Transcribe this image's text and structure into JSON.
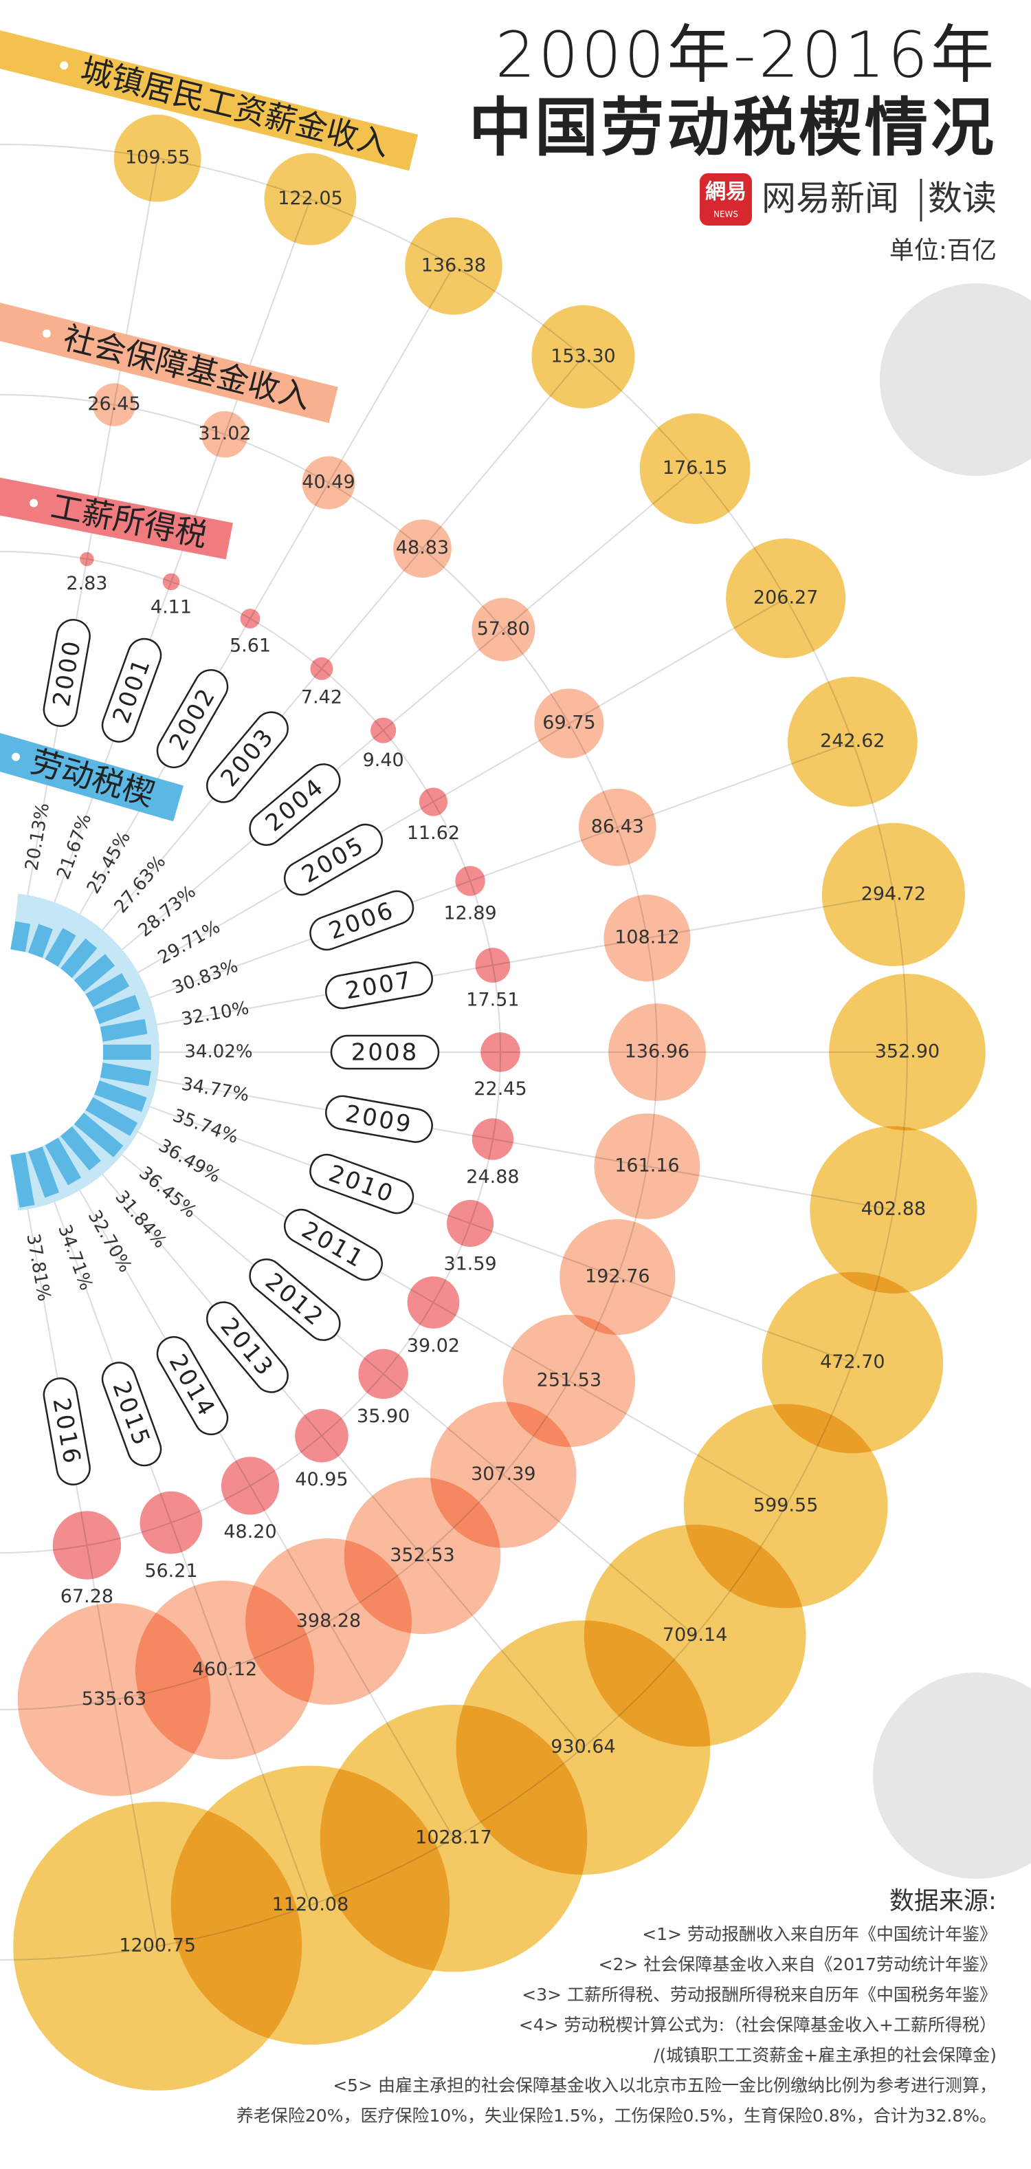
{
  "chart_data": {
    "type": "radial-bubble",
    "title": [
      "2000年-2016年",
      "中国劳动税楔情况"
    ],
    "unit": "单位:百亿",
    "categories": [
      "2000",
      "2001",
      "2002",
      "2003",
      "2004",
      "2005",
      "2006",
      "2007",
      "2008",
      "2009",
      "2010",
      "2011",
      "2012",
      "2013",
      "2014",
      "2015",
      "2016"
    ],
    "series": [
      {
        "name": "城镇居民工资薪金收入",
        "color": "#f2c14e",
        "values": [
          109.55,
          122.05,
          136.38,
          153.3,
          176.15,
          206.27,
          242.62,
          294.72,
          352.9,
          402.88,
          472.7,
          599.55,
          709.14,
          930.64,
          1028.17,
          1120.08,
          1200.75
        ],
        "value_labels": [
          "109.55",
          "122.05",
          "136.38",
          "153.30",
          "176.15",
          "206.27",
          "242.62",
          "294.72",
          "352.90",
          "402.88",
          "472.70",
          "599.55",
          "709.14",
          "930.64",
          "1028.17",
          "1120.08",
          "1200.75"
        ]
      },
      {
        "name": "社会保障基金收入",
        "color": "#f9b08f",
        "values": [
          26.45,
          31.02,
          40.49,
          48.83,
          57.8,
          69.75,
          86.43,
          108.12,
          136.96,
          161.16,
          192.76,
          251.53,
          307.39,
          352.53,
          398.28,
          460.12,
          535.63
        ],
        "value_labels": [
          "26.45",
          "31.02",
          "40.49",
          "48.83",
          "57.80",
          "69.75",
          "86.43",
          "108.12",
          "136.96",
          "161.16",
          "192.76",
          "251.53",
          "307.39",
          "352.53",
          "398.28",
          "460.12",
          "535.63"
        ]
      },
      {
        "name": "工薪所得税",
        "color": "#f07c80",
        "values": [
          2.83,
          4.11,
          5.61,
          7.42,
          9.4,
          11.62,
          12.89,
          17.51,
          22.45,
          24.88,
          31.59,
          39.02,
          35.9,
          40.95,
          48.2,
          56.21,
          67.28
        ],
        "value_labels": [
          "2.83",
          "4.11",
          "5.61",
          "7.42",
          "9.40",
          "11.62",
          "12.89",
          "17.51",
          "22.45",
          "24.88",
          "31.59",
          "39.02",
          "35.90",
          "40.95",
          "48.20",
          "56.21",
          "67.28"
        ]
      },
      {
        "name": "劳动税楔",
        "color": "#5bb8e4",
        "type": "bar",
        "values": [
          20.13,
          21.67,
          25.45,
          27.63,
          28.73,
          29.71,
          30.83,
          32.1,
          34.02,
          34.77,
          35.74,
          36.49,
          36.45,
          31.84,
          32.7,
          34.71,
          37.81
        ],
        "value_labels": [
          "20.13%",
          "21.67%",
          "25.45%",
          "27.63%",
          "28.73%",
          "29.71%",
          "30.83%",
          "32.10%",
          "34.02%",
          "34.77%",
          "35.74%",
          "36.49%",
          "36.45%",
          "31.84%",
          "32.70%",
          "34.71%",
          "37.81%"
        ]
      }
    ]
  },
  "brand": {
    "logo": "網易",
    "logo_sub": "NEWS",
    "name": "网易新闻",
    "channel": "数读"
  },
  "sources": {
    "title": "数据来源:",
    "lines": [
      "<1> 劳动报酬收入来自历年《中国统计年鉴》",
      "<2> 社会保障基金收入来自《2017劳动统计年鉴》",
      "<3> 工薪所得税、劳动报酬所得税来自历年《中国税务年鉴》",
      "<4> 劳动税楔计算公式为:（社会保障基金收入+工薪所得税）",
      "/(城镇职工工资薪金+雇主承担的社会保障金)",
      "<5> 由雇主承担的社会保障基金收入以北京市五险一金比例缴纳比例为参考进行测算，",
      "养老保险20%，医疗保险10%，失业保险1.5%，工伤保险0.5%，生育保险0.8%，合计为32.8%。"
    ]
  }
}
